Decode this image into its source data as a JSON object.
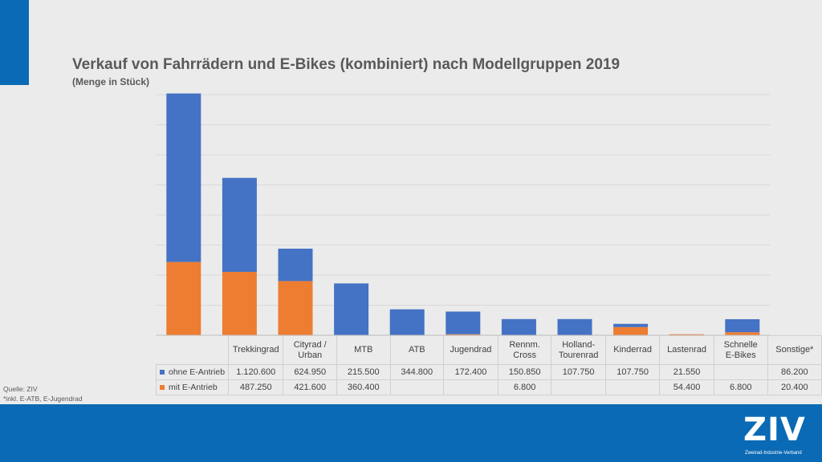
{
  "title": "Verkauf von Fahrrädern und E-Bikes (kombiniert) nach Modellgruppen 2019",
  "subtitle": "(Menge in Stück)",
  "source": "Quelle: ZIV",
  "footnote": "*inkl. E-ATB, E-Jugendrad",
  "logo": {
    "text": "ZIV",
    "subtitle": "Zweirad-Industrie-Verband"
  },
  "colors": {
    "accent": "#0a6ab5",
    "ohne": "#4472c4",
    "mit": "#ed7d31"
  },
  "chart_data": {
    "type": "bar",
    "stacked": true,
    "title": "Verkauf von Fahrrädern und E-Bikes (kombiniert) nach Modellgruppen 2019",
    "subtitle": "(Menge in Stück)",
    "categories": [
      "Trekkingrad",
      "Cityrad / Urban",
      "MTB",
      "ATB",
      "Jugendrad",
      "Rennm. Cross",
      "Holland-Tourenrad",
      "Kinderrad",
      "Lastenrad",
      "Schnelle E-Bikes",
      "Sonstige*"
    ],
    "category_lines": [
      [
        "Trekkingrad"
      ],
      [
        "Cityrad /",
        "Urban"
      ],
      [
        "MTB"
      ],
      [
        "ATB"
      ],
      [
        "Jugendrad"
      ],
      [
        "Rennm.",
        "Cross"
      ],
      [
        "Holland-",
        "Tourenrad"
      ],
      [
        "Kinderrad"
      ],
      [
        "Lastenrad"
      ],
      [
        "Schnelle",
        "E-Bikes"
      ],
      [
        "Sonstige*"
      ]
    ],
    "series": [
      {
        "name": "mit E-Antrieb",
        "color": "#ed7d31",
        "values": [
          487250,
          421600,
          360400,
          null,
          null,
          6800,
          null,
          null,
          54400,
          6800,
          20400
        ],
        "labels": [
          "487.250",
          "421.600",
          "360.400",
          "",
          "",
          "6.800",
          "",
          "",
          "54.400",
          "6.800",
          "20.400"
        ]
      },
      {
        "name": "ohne E-Antrieb",
        "color": "#4472c4",
        "values": [
          1120600,
          624950,
          215500,
          344800,
          172400,
          150850,
          107750,
          107750,
          21550,
          null,
          86200
        ],
        "labels": [
          "1.120.600",
          "624.950",
          "215.500",
          "344.800",
          "172.400",
          "150.850",
          "107.750",
          "107.750",
          "21.550",
          "",
          "86.200"
        ]
      }
    ],
    "ylim": [
      0,
      1600000
    ],
    "grid": true,
    "legend": "data-table"
  }
}
